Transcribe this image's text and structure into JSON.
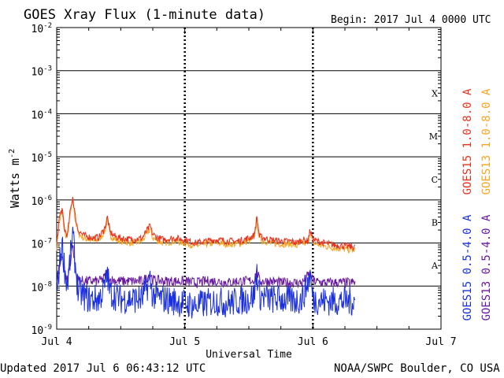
{
  "header": {
    "title": "GOES Xray Flux (1-minute data)",
    "begin": "Begin:  2017 Jul 4 0000 UTC"
  },
  "footer": {
    "updated": "Updated 2017 Jul  6 06:43:12 UTC",
    "credit": "NOAA/SWPC Boulder, CO USA"
  },
  "chart_data": {
    "type": "line",
    "title": "GOES Xray Flux (1-minute data)",
    "xlabel": "Universal Time",
    "ylabel": "Watts m-2",
    "yscale": "log",
    "ylim": [
      1e-09,
      0.01
    ],
    "xlim": [
      0,
      72
    ],
    "x_unit": "hours since 2017 Jul 4 0000 UTC",
    "x_ticks": [
      {
        "x": 0,
        "label": "Jul 4"
      },
      {
        "x": 24,
        "label": "Jul 5"
      },
      {
        "x": 48,
        "label": "Jul 6"
      },
      {
        "x": 72,
        "label": "Jul 7"
      }
    ],
    "y_ticks": [
      {
        "value": 0.01,
        "base": "10",
        "exp": "-2"
      },
      {
        "value": 0.001,
        "base": "10",
        "exp": "-3"
      },
      {
        "value": 0.0001,
        "base": "10",
        "exp": "-4"
      },
      {
        "value": 1e-05,
        "base": "10",
        "exp": "-5"
      },
      {
        "value": 1e-06,
        "base": "10",
        "exp": "-6"
      },
      {
        "value": 1e-07,
        "base": "10",
        "exp": "-7"
      },
      {
        "value": 1e-08,
        "base": "10",
        "exp": "-8"
      },
      {
        "value": 1e-09,
        "base": "10",
        "exp": "-9"
      }
    ],
    "flare_classes": [
      {
        "label": "X",
        "value": 0.0003
      },
      {
        "label": "M",
        "value": 3e-05
      },
      {
        "label": "C",
        "value": 3e-06
      },
      {
        "label": "B",
        "value": 3e-07
      },
      {
        "label": "A",
        "value": 3e-08
      }
    ],
    "grid": true,
    "legend": "right",
    "series": [
      {
        "name": "GOES15 1.0-8.0 A",
        "color": "#e8321e",
        "band": "long",
        "x": [
          0,
          0.5,
          1,
          1.5,
          2,
          2.5,
          3,
          3.5,
          4,
          5,
          6,
          7,
          8,
          9,
          9.5,
          10,
          11,
          12,
          14,
          16,
          17,
          17.5,
          18,
          19,
          20,
          22,
          24,
          26,
          28,
          30,
          32,
          34,
          36,
          37,
          37.5,
          38,
          40,
          42,
          44,
          45,
          46,
          47,
          47.5,
          48,
          50,
          52,
          54,
          56
        ],
        "y": [
          9e-08,
          4e-07,
          6e-07,
          2e-07,
          1.5e-07,
          5e-07,
          1.2e-06,
          4e-07,
          2e-07,
          1.5e-07,
          1.4e-07,
          1.3e-07,
          1.4e-07,
          2.2e-07,
          4e-07,
          1.8e-07,
          1.4e-07,
          1.3e-07,
          1.2e-07,
          1.3e-07,
          2e-07,
          2.5e-07,
          1.6e-07,
          1.3e-07,
          1.2e-07,
          1.3e-07,
          1.2e-07,
          1e-07,
          1.1e-07,
          1.2e-07,
          1.1e-07,
          1.1e-07,
          1.3e-07,
          1.5e-07,
          4e-07,
          1.4e-07,
          1.2e-07,
          1.1e-07,
          1.1e-07,
          1e-07,
          1.2e-07,
          1.1e-07,
          2e-07,
          1.2e-07,
          1e-07,
          9e-08,
          8.5e-08,
          8e-08
        ]
      },
      {
        "name": "GOES13 1.0-8.0 A",
        "color": "#f5a623",
        "band": "long",
        "x": [
          0,
          0.5,
          1,
          1.5,
          2,
          2.5,
          3,
          3.5,
          4,
          5,
          6,
          7,
          8,
          9,
          9.5,
          10,
          11,
          12,
          14,
          16,
          17,
          17.5,
          18,
          19,
          20,
          22,
          24,
          26,
          28,
          30,
          32,
          34,
          36,
          37,
          37.5,
          38,
          40,
          42,
          44,
          45,
          46,
          47,
          47.5,
          48,
          50,
          52,
          54,
          56
        ],
        "y": [
          8e-08,
          3.2e-07,
          5e-07,
          1.7e-07,
          1.3e-07,
          4.2e-07,
          1e-06,
          3.4e-07,
          1.7e-07,
          1.3e-07,
          1.2e-07,
          1.1e-07,
          1.2e-07,
          1.9e-07,
          3.4e-07,
          1.5e-07,
          1.2e-07,
          1.1e-07,
          1e-07,
          1.1e-07,
          1.7e-07,
          2.1e-07,
          1.3e-07,
          1.1e-07,
          1e-07,
          1.1e-07,
          1e-07,
          8.5e-08,
          9.5e-08,
          1e-07,
          9.5e-08,
          9.5e-08,
          1.1e-07,
          1.3e-07,
          3.4e-07,
          1.2e-07,
          1e-07,
          9.5e-08,
          9.5e-08,
          8.5e-08,
          1e-07,
          9.5e-08,
          1.7e-07,
          1e-07,
          8.5e-08,
          7.7e-08,
          7.2e-08,
          6.8e-08
        ]
      },
      {
        "name": "GOES15 0.5-4.0 A",
        "color": "#1a2fe0",
        "band": "short",
        "x": [
          0,
          0.5,
          1,
          1.5,
          2,
          2.5,
          3,
          3.5,
          4,
          5,
          6,
          7,
          8,
          9,
          9.5,
          10,
          12,
          14,
          16,
          17,
          17.5,
          18,
          20,
          22,
          24,
          26,
          28,
          30,
          32,
          34,
          36,
          37,
          37.5,
          38,
          40,
          42,
          44,
          46,
          47.5,
          48,
          50,
          52,
          54,
          56
        ],
        "y": [
          6e-09,
          3e-08,
          1e-07,
          2.5e-08,
          1e-08,
          4e-08,
          1.6e-07,
          3e-08,
          8e-09,
          6e-09,
          5e-09,
          5e-09,
          5e-09,
          1e-08,
          1.8e-08,
          7e-09,
          5e-09,
          5e-09,
          5e-09,
          1e-08,
          1.4e-08,
          6e-09,
          5e-09,
          4.5e-09,
          4e-09,
          3.5e-09,
          4e-09,
          4.5e-09,
          4e-09,
          4.5e-09,
          5e-09,
          6e-09,
          2.2e-08,
          6e-09,
          5e-09,
          5e-09,
          4.5e-09,
          5e-09,
          1.8e-08,
          5e-09,
          4.5e-09,
          4.5e-09,
          4.5e-09,
          4.5e-09
        ]
      },
      {
        "name": "GOES13 0.5-4.0 A",
        "color": "#6a1aa0",
        "band": "short",
        "x": [
          0,
          0.5,
          1,
          1.5,
          2,
          2.5,
          3,
          3.5,
          4,
          5,
          6,
          7,
          8,
          9,
          9.5,
          10,
          12,
          14,
          16,
          17,
          17.5,
          18,
          20,
          22,
          24,
          26,
          28,
          30,
          32,
          34,
          36,
          37,
          37.5,
          38,
          40,
          42,
          44,
          46,
          47.5,
          48,
          50,
          52,
          54,
          56
        ],
        "y": [
          1.3e-08,
          2.5e-08,
          6e-08,
          2e-08,
          1.4e-08,
          3e-08,
          1e-07,
          2.2e-08,
          1.4e-08,
          1.3e-08,
          1.3e-08,
          1.3e-08,
          1.3e-08,
          1.6e-08,
          2.3e-08,
          1.4e-08,
          1.3e-08,
          1.3e-08,
          1.3e-08,
          1.6e-08,
          2e-08,
          1.4e-08,
          1.3e-08,
          1.3e-08,
          1.3e-08,
          1.2e-08,
          1.3e-08,
          1.3e-08,
          1.2e-08,
          1.3e-08,
          1.3e-08,
          1.4e-08,
          2.4e-08,
          1.3e-08,
          1.3e-08,
          1.2e-08,
          1.2e-08,
          1.2e-08,
          2e-08,
          1.3e-08,
          1.2e-08,
          1.2e-08,
          1.2e-08,
          1.2e-08
        ]
      }
    ]
  }
}
